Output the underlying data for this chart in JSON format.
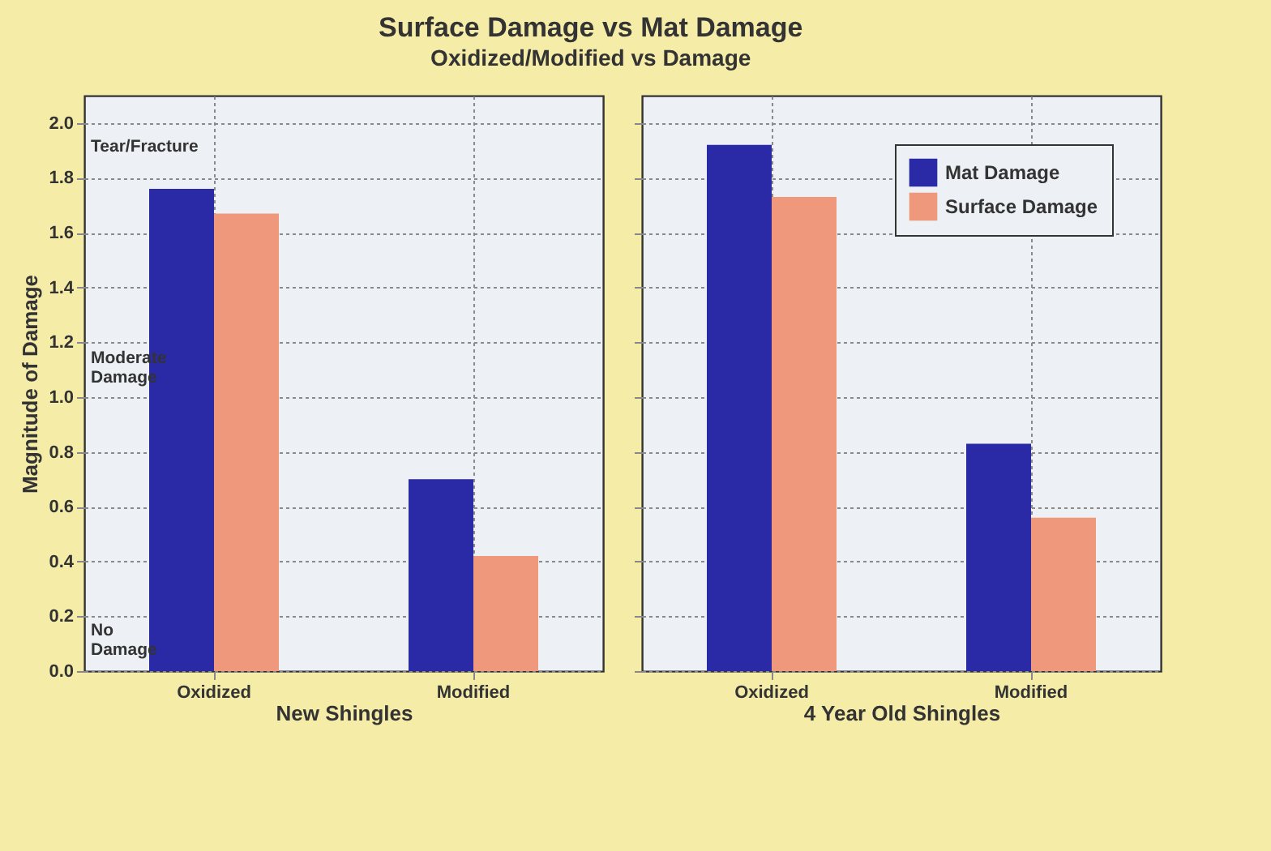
{
  "chart_data": [
    {
      "type": "bar",
      "title": "Surface Damage vs Mat Damage",
      "subtitle": "Oxidized/Modified vs Damage",
      "xlabel": "New Shingles",
      "ylabel": "Magnitude of Damage",
      "categories": [
        "Oxidized",
        "Modified"
      ],
      "series": [
        {
          "color": "#2a2aa6",
          "values": [
            1.76,
            0.7
          ]
        },
        {
          "color": "#f0987c",
          "values": [
            1.67,
            0.42
          ]
        }
      ],
      "ylim": [
        0,
        2.1
      ],
      "yticks": [
        {
          "value": 0,
          "label": "0.0"
        },
        {
          "value": 0.2,
          "label": "0.2"
        },
        {
          "value": 0.4,
          "label": "0.4"
        },
        {
          "value": 0.6,
          "label": "0.6"
        },
        {
          "value": 0.8,
          "label": "0.8"
        },
        {
          "value": 1,
          "label": "1.0"
        },
        {
          "value": 1.2,
          "label": "1.2"
        },
        {
          "value": 1.4,
          "label": "1.4"
        },
        {
          "value": 1.6,
          "label": "1.6"
        },
        {
          "value": 1.8,
          "label": "1.8"
        },
        {
          "value": 2,
          "label": "2.0"
        }
      ],
      "annotations": [
        "Tear/Fracture",
        "Moderate Damage",
        "No Damage"
      ],
      "grid": true
    },
    {
      "type": "bar",
      "xlabel": "4 Year Old Shingles",
      "categories": [
        "Oxidized",
        "Modified"
      ],
      "series": [
        {
          "name": "Mat Damage",
          "color": "#2a2aa6",
          "values": [
            1.92,
            0.83
          ]
        },
        {
          "name": "Surface Damage",
          "color": "#f0987c",
          "values": [
            1.73,
            0.56
          ]
        }
      ],
      "ylim": [
        0,
        2.1
      ],
      "yticks": [
        0,
        0.2,
        0.4,
        0.6,
        0.8,
        1,
        1.2,
        1.4,
        1.6,
        1.8,
        2
      ],
      "tick_labels": "x",
      "legend": "top right",
      "grid": true
    }
  ]
}
